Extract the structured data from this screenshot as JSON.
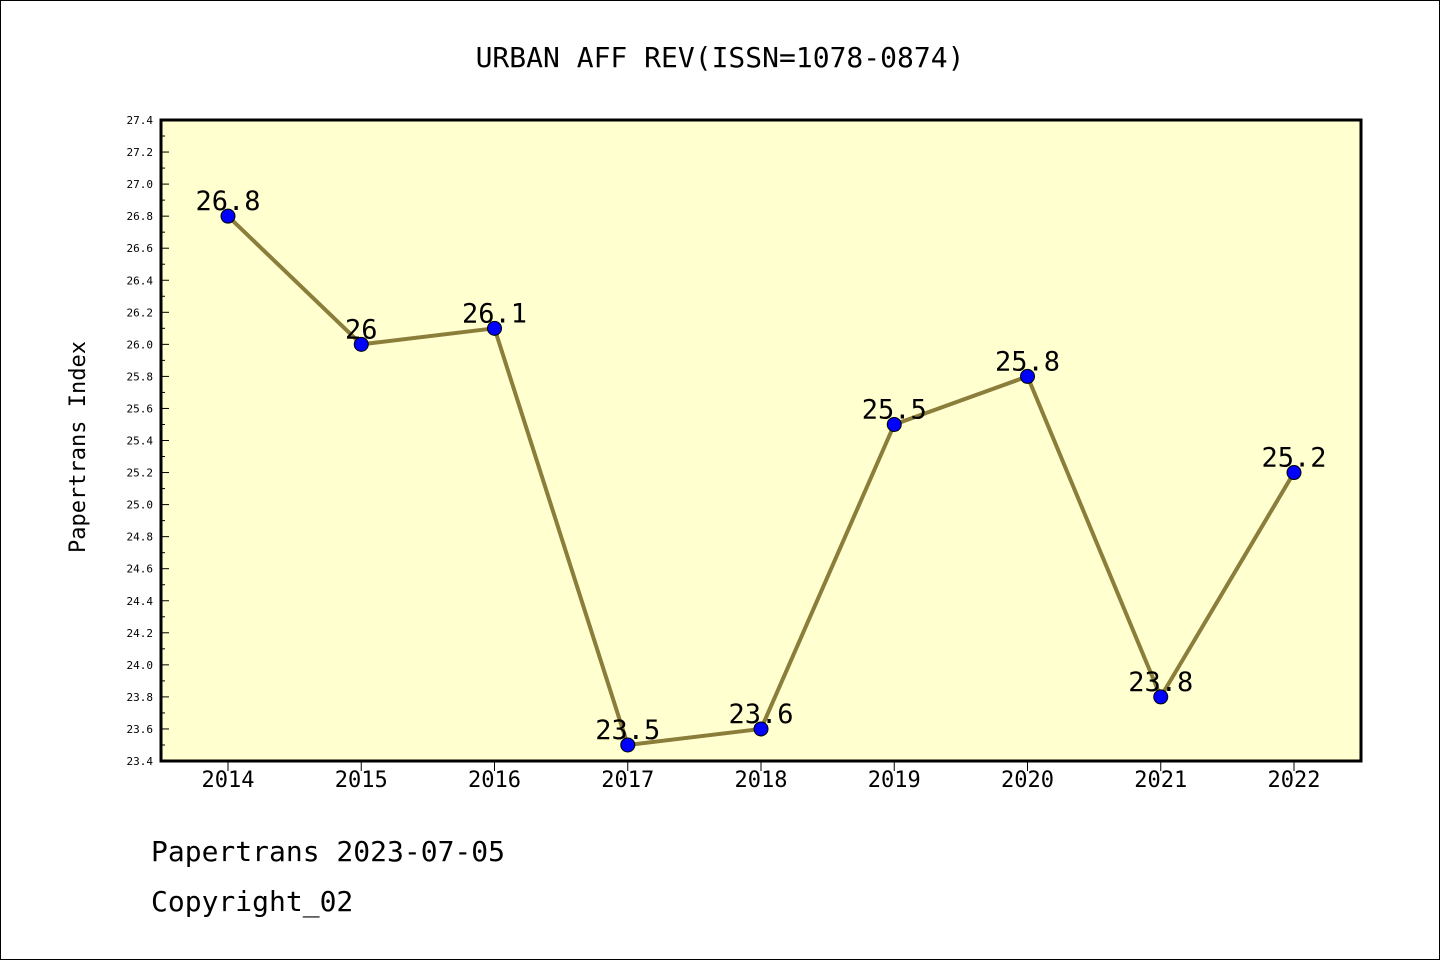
{
  "chart_data": {
    "type": "line",
    "title": "URBAN AFF REV(ISSN=1078-0874)",
    "xlabel": "",
    "ylabel": "Papertrans Index",
    "categories": [
      "2014",
      "2015",
      "2016",
      "2017",
      "2018",
      "2019",
      "2020",
      "2021",
      "2022"
    ],
    "series": [
      {
        "values": [
          26.8,
          26.0,
          26.1,
          23.5,
          23.6,
          25.5,
          25.8,
          23.8,
          25.2
        ],
        "data_labels": [
          "26.8",
          "26",
          "26.1",
          "23.5",
          "23.6",
          "25.5",
          "25.8",
          "23.8",
          "25.2"
        ],
        "line_color": "#8b7d3a",
        "marker_color": "#0000ff"
      }
    ],
    "ylim": [
      23.4,
      27.4
    ],
    "y_ticks": [
      "23.4",
      "23.6",
      "23.8",
      "24.0",
      "24.2",
      "24.4",
      "24.6",
      "24.8",
      "25.0",
      "25.2",
      "25.4",
      "25.6",
      "25.8",
      "26.0",
      "26.2",
      "26.4",
      "26.6",
      "26.8",
      "27.0",
      "27.2",
      "27.4"
    ],
    "plot_background": "#ffffd0",
    "grid": false,
    "legend": "none"
  },
  "footer": {
    "line1": "Papertrans 2023-07-05",
    "line2": "Copyright_02"
  }
}
